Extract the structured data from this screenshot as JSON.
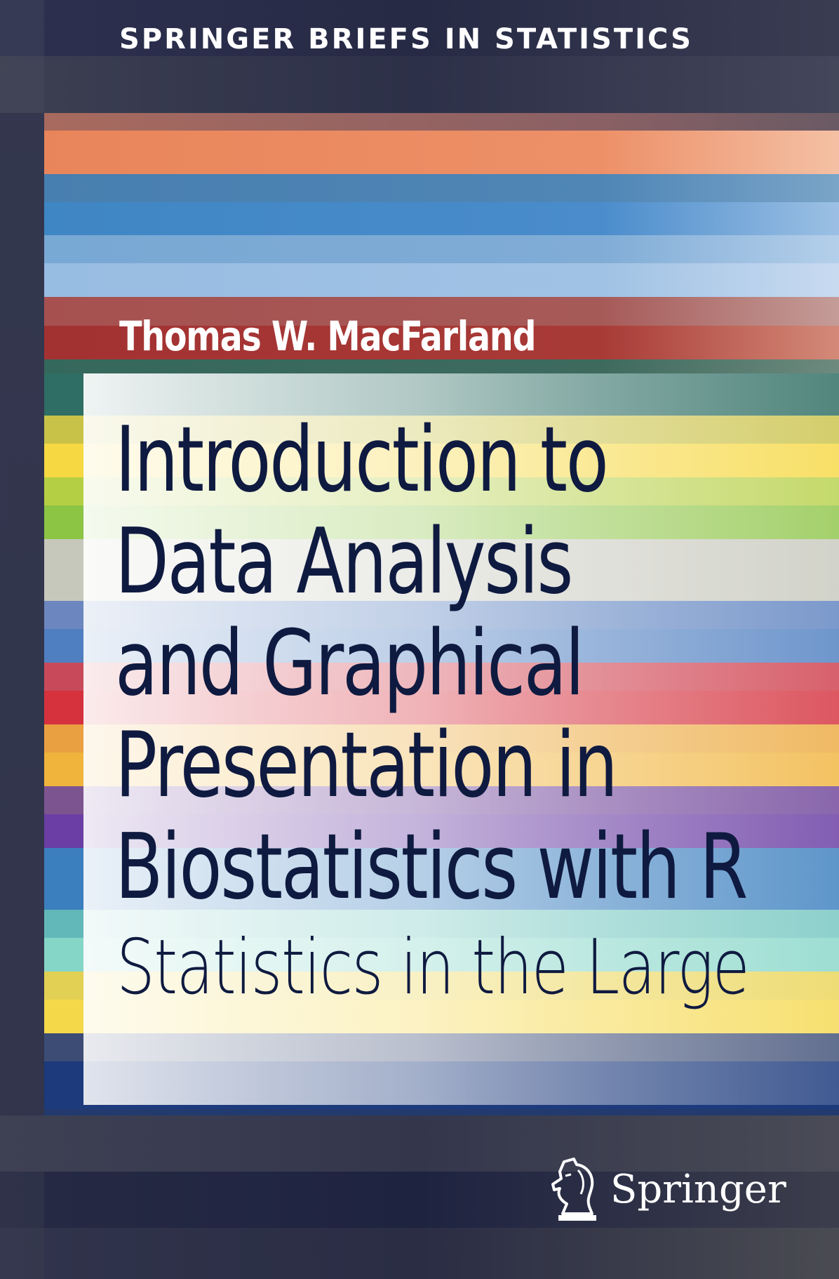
{
  "series": "SPRINGER BRIEFS IN STATISTICS",
  "author": "Thomas W. MacFarland",
  "title_lines": [
    "Introduction to",
    "Data Analysis",
    "and Graphical",
    "Presentation in",
    "Biostatistics with R"
  ],
  "subtitle": "Statistics in the Large",
  "publisher": {
    "name": "Springer",
    "logo": "springer-horse-icon"
  },
  "colors": {
    "background": "#2a2e48",
    "title_text": "#0f1a40",
    "series_text": "#ffffff",
    "stripes": [
      "#a86a5e",
      "#e9855a",
      "#477fb0",
      "#3f86c4",
      "#78a8d4",
      "#98bde2",
      "#a65150",
      "#a23232",
      "#2f6e64",
      "#c9c248",
      "#f6d842",
      "#b5cf44",
      "#8cc444",
      "#c7c8bc",
      "#6c86bf",
      "#4f7fc1",
      "#c84a5a",
      "#d5323e",
      "#e9a040",
      "#f0b43c",
      "#7c5490",
      "#6a3ea4",
      "#3b7fbf",
      "#62b8b8",
      "#86d6c8",
      "#e2d054",
      "#f5d84a",
      "#3c4c74",
      "#1c3a7c"
    ]
  }
}
